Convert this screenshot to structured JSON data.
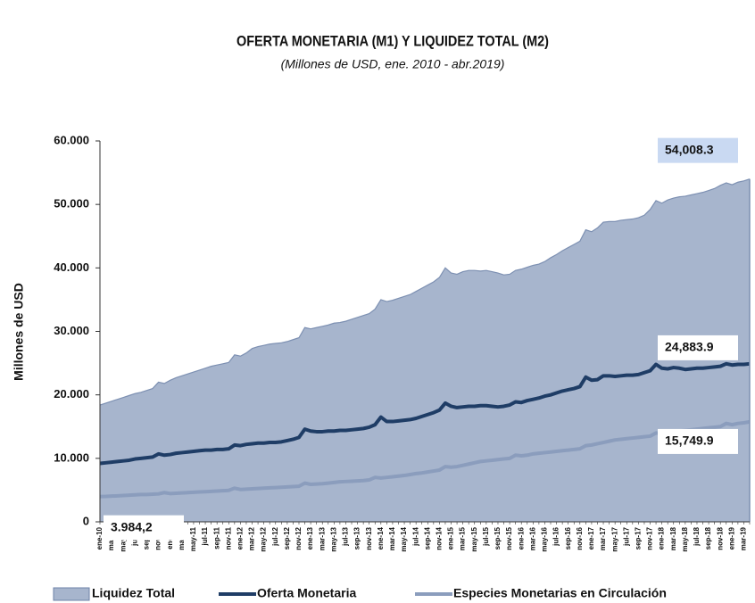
{
  "chart_data": {
    "type": "line",
    "title": "OFERTA MONETARIA (M1) Y LIQUIDEZ TOTAL (M2)",
    "subtitle": "(Millones de USD, ene. 2010 - abr.2019)",
    "ylabel": "Millones de  USD",
    "ylim": [
      0,
      60000
    ],
    "yticks": [
      0,
      {
        "value": 10000,
        "label": "10.000"
      },
      {
        "value": 20000,
        "label": "20.000"
      },
      {
        "value": 30000,
        "label": "30.000"
      },
      {
        "value": 40000,
        "label": "40.000"
      },
      {
        "value": 50000,
        "label": "50.000"
      },
      {
        "value": 60000,
        "label": "60.000"
      }
    ],
    "legend": "bottom",
    "categories": [
      "ene-10",
      null,
      "mar-10",
      null,
      "may-10",
      null,
      "jul-10",
      null,
      "sep-10",
      null,
      "nov-10",
      null,
      "ene-11",
      null,
      "mar-11",
      null,
      "may-11",
      null,
      "jul-11",
      null,
      "sep-11",
      null,
      "nov-11",
      null,
      "ene-12",
      null,
      "mar-12",
      null,
      "may-12",
      null,
      "jul-12",
      null,
      "sep-12",
      null,
      "nov-12",
      null,
      "ene-13",
      null,
      "mar-13",
      null,
      "may-13",
      null,
      "jul-13",
      null,
      "sep-13",
      null,
      "nov-13",
      null,
      "ene-14",
      null,
      "mar-14",
      null,
      "may-14",
      null,
      "jul-14",
      null,
      "sep-14",
      null,
      "nov-14",
      null,
      "ene-15",
      null,
      "mar-15",
      null,
      "may-15",
      null,
      "jul-15",
      null,
      "sep-15",
      null,
      "nov-15",
      null,
      "ene-16",
      null,
      "mar-16",
      null,
      "may-16",
      null,
      "jul-16",
      null,
      "sep-16",
      null,
      "nov-16",
      null,
      "ene-17",
      null,
      "mar-17",
      null,
      "may-17",
      null,
      "jul-17",
      null,
      "sep-17",
      null,
      "nov-17",
      null,
      "ene-18",
      null,
      "mar-18",
      null,
      "may-18",
      null,
      "jul-18",
      null,
      "sep-18",
      null,
      "nov-18",
      null,
      "ene-19",
      null,
      "mar-19",
      null
    ],
    "series": [
      {
        "name": "Liquidez Total",
        "color": "#a7b5cd",
        "fill": true,
        "values": [
          18400,
          18700,
          19000,
          19300,
          19600,
          19900,
          20200,
          20400,
          20700,
          21000,
          22000,
          21800,
          22300,
          22700,
          23000,
          23300,
          23600,
          23900,
          24200,
          24500,
          24700,
          24900,
          25100,
          26300,
          26100,
          26600,
          27300,
          27600,
          27800,
          28000,
          28100,
          28200,
          28400,
          28700,
          29000,
          30600,
          30400,
          30600,
          30800,
          31000,
          31300,
          31400,
          31600,
          31900,
          32200,
          32500,
          32800,
          33500,
          35000,
          34700,
          34900,
          35200,
          35500,
          35800,
          36300,
          36800,
          37300,
          37800,
          38500,
          40000,
          39200,
          39000,
          39400,
          39600,
          39600,
          39500,
          39600,
          39400,
          39200,
          38900,
          39000,
          39600,
          39800,
          40100,
          40400,
          40600,
          41000,
          41600,
          42100,
          42700,
          43200,
          43700,
          44200,
          46000,
          45700,
          46300,
          47200,
          47300,
          47300,
          47500,
          47600,
          47700,
          47900,
          48300,
          49200,
          50600,
          50200,
          50700,
          51000,
          51200,
          51300,
          51500,
          51700,
          51900,
          52200,
          52500,
          53000,
          53400,
          53100,
          53500,
          53700,
          54008.3
        ],
        "value_labels": [
          null,
          null,
          null,
          null,
          null,
          null,
          null,
          null,
          null,
          null,
          null,
          null,
          null,
          null,
          null,
          null,
          null,
          null,
          null,
          null,
          null,
          null,
          null,
          null,
          null,
          null,
          null,
          null,
          null,
          null,
          null,
          null,
          null,
          null,
          null,
          null,
          null,
          null,
          null,
          null,
          null,
          null,
          null,
          null,
          null,
          null,
          null,
          null,
          null,
          null,
          null,
          null,
          null,
          null,
          null,
          null,
          null,
          null,
          null,
          null,
          null,
          null,
          null,
          null,
          null,
          null,
          null,
          null,
          null,
          null,
          null,
          null,
          null,
          null,
          null,
          null,
          null,
          null,
          null,
          null,
          null,
          null,
          null,
          null,
          null,
          null,
          null,
          null,
          null,
          null,
          null,
          null,
          null,
          null,
          null,
          null,
          null,
          null,
          null,
          null,
          null,
          null,
          null,
          null,
          null,
          null,
          null,
          null,
          null,
          null,
          null,
          "54,008.3"
        ]
      },
      {
        "name": "Oferta Monetaria",
        "color": "#1f3d66",
        "fill": false,
        "values": [
          9200,
          9300,
          9400,
          9500,
          9600,
          9700,
          9900,
          10000,
          10100,
          10200,
          10700,
          10500,
          10600,
          10800,
          10900,
          11000,
          11100,
          11200,
          11300,
          11300,
          11400,
          11400,
          11500,
          12100,
          12000,
          12200,
          12300,
          12400,
          12400,
          12500,
          12500,
          12600,
          12800,
          13000,
          13300,
          14600,
          14300,
          14200,
          14200,
          14300,
          14300,
          14400,
          14400,
          14500,
          14600,
          14700,
          14900,
          15300,
          16500,
          15800,
          15800,
          15900,
          16000,
          16100,
          16300,
          16600,
          16900,
          17200,
          17600,
          18700,
          18200,
          18000,
          18100,
          18200,
          18200,
          18300,
          18300,
          18200,
          18100,
          18200,
          18400,
          18900,
          18800,
          19100,
          19300,
          19500,
          19800,
          20000,
          20300,
          20600,
          20800,
          21000,
          21300,
          22800,
          22300,
          22400,
          23000,
          23000,
          22900,
          23000,
          23100,
          23100,
          23200,
          23500,
          23800,
          24800,
          24200,
          24100,
          24300,
          24200,
          24000,
          24100,
          24200,
          24200,
          24300,
          24400,
          24500,
          24900,
          24700,
          24800,
          24800,
          24883.9
        ],
        "value_labels": [
          null,
          null,
          null,
          null,
          null,
          null,
          null,
          null,
          null,
          null,
          null,
          null,
          null,
          null,
          null,
          null,
          null,
          null,
          null,
          null,
          null,
          null,
          null,
          null,
          null,
          null,
          null,
          null,
          null,
          null,
          null,
          null,
          null,
          null,
          null,
          null,
          null,
          null,
          null,
          null,
          null,
          null,
          null,
          null,
          null,
          null,
          null,
          null,
          null,
          null,
          null,
          null,
          null,
          null,
          null,
          null,
          null,
          null,
          null,
          null,
          null,
          null,
          null,
          null,
          null,
          null,
          null,
          null,
          null,
          null,
          null,
          null,
          null,
          null,
          null,
          null,
          null,
          null,
          null,
          null,
          null,
          null,
          null,
          null,
          null,
          null,
          null,
          null,
          null,
          null,
          null,
          null,
          null,
          null,
          null,
          null,
          null,
          null,
          null,
          null,
          null,
          null,
          null,
          null,
          null,
          null,
          null,
          null,
          null,
          null,
          null,
          "24,883.9"
        ]
      },
      {
        "name": "Especies Monetarias en Circulación",
        "color": "#8b9dbd",
        "fill": false,
        "values": [
          3984.2,
          4000,
          4050,
          4100,
          4150,
          4200,
          4250,
          4300,
          4300,
          4350,
          4400,
          4600,
          4450,
          4500,
          4550,
          4600,
          4650,
          4700,
          4750,
          4800,
          4850,
          4900,
          4950,
          5300,
          5100,
          5150,
          5200,
          5250,
          5300,
          5350,
          5400,
          5450,
          5500,
          5550,
          5600,
          6100,
          5900,
          5950,
          6000,
          6100,
          6200,
          6300,
          6350,
          6400,
          6450,
          6500,
          6600,
          7000,
          6900,
          7000,
          7100,
          7200,
          7300,
          7450,
          7600,
          7700,
          7850,
          8000,
          8150,
          8700,
          8600,
          8700,
          8900,
          9100,
          9300,
          9500,
          9600,
          9700,
          9800,
          9900,
          10000,
          10500,
          10400,
          10500,
          10700,
          10800,
          10900,
          11000,
          11100,
          11200,
          11300,
          11400,
          11500,
          12000,
          12100,
          12300,
          12500,
          12700,
          12900,
          13000,
          13100,
          13200,
          13300,
          13400,
          13500,
          14000,
          13900,
          14000,
          14200,
          14300,
          14400,
          14500,
          14600,
          14700,
          14800,
          14900,
          15000,
          15500,
          15300,
          15500,
          15600,
          15749.9
        ],
        "value_labels": [
          "3.984,2",
          null,
          null,
          null,
          null,
          null,
          null,
          null,
          null,
          null,
          null,
          null,
          null,
          null,
          null,
          null,
          null,
          null,
          null,
          null,
          null,
          null,
          null,
          null,
          null,
          null,
          null,
          null,
          null,
          null,
          null,
          null,
          null,
          null,
          null,
          null,
          null,
          null,
          null,
          null,
          null,
          null,
          null,
          null,
          null,
          null,
          null,
          null,
          null,
          null,
          null,
          null,
          null,
          null,
          null,
          null,
          null,
          null,
          null,
          null,
          null,
          null,
          null,
          null,
          null,
          null,
          null,
          null,
          null,
          null,
          null,
          null,
          null,
          null,
          null,
          null,
          null,
          null,
          null,
          null,
          null,
          null,
          null,
          null,
          null,
          null,
          null,
          null,
          null,
          null,
          null,
          null,
          null,
          null,
          null,
          null,
          null,
          null,
          null,
          null,
          null,
          null,
          null,
          null,
          null,
          null,
          null,
          null,
          null,
          null,
          null,
          "15,749.9"
        ]
      }
    ]
  }
}
